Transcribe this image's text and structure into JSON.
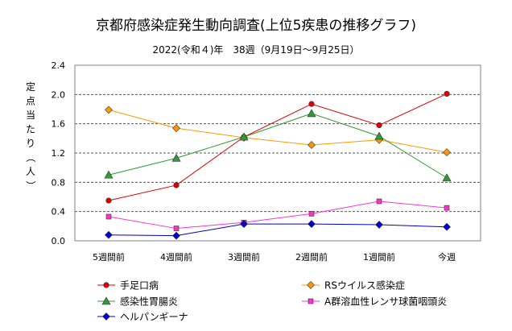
{
  "chart_data": {
    "type": "line",
    "title": "京都府感染症発生動向調査(上位5疾患の推移グラフ)",
    "subtitle": "2022(令和４)年　38週（9月19日～9月25日）",
    "ylabel": "定点当たり（人）",
    "xlabel": "",
    "categories": [
      "5週間前",
      "4週間前",
      "3週間前",
      "2週間前",
      "1週間前",
      "今週"
    ],
    "ylim": [
      0,
      2.4
    ],
    "yticks": [
      "0.0",
      "0.4",
      "0.8",
      "1.2",
      "1.6",
      "2.0",
      "2.4"
    ],
    "grid": "horizontal-dashed",
    "legend_position": "bottom",
    "series": [
      {
        "name": "手足口病",
        "color": "#e00000",
        "marker": "circle",
        "values": [
          0.55,
          0.76,
          1.42,
          1.87,
          1.58,
          2.01
        ]
      },
      {
        "name": "RSウイルス感染症",
        "color": "#ff9900",
        "marker": "diamond",
        "values": [
          1.79,
          1.54,
          1.41,
          1.31,
          1.38,
          1.21
        ]
      },
      {
        "name": "感染性胃腸炎",
        "color": "#339933",
        "marker": "triangle",
        "values": [
          0.9,
          1.13,
          1.42,
          1.74,
          1.43,
          0.86
        ]
      },
      {
        "name": "A群溶血性レンサ球菌咽頭炎",
        "color": "#ff33cc",
        "marker": "square",
        "values": [
          0.33,
          0.17,
          0.25,
          0.37,
          0.54,
          0.45
        ]
      },
      {
        "name": "ヘルパンギーナ",
        "color": "#0000cc",
        "marker": "diamond",
        "values": [
          0.08,
          0.07,
          0.23,
          0.23,
          0.22,
          0.19
        ]
      }
    ]
  }
}
